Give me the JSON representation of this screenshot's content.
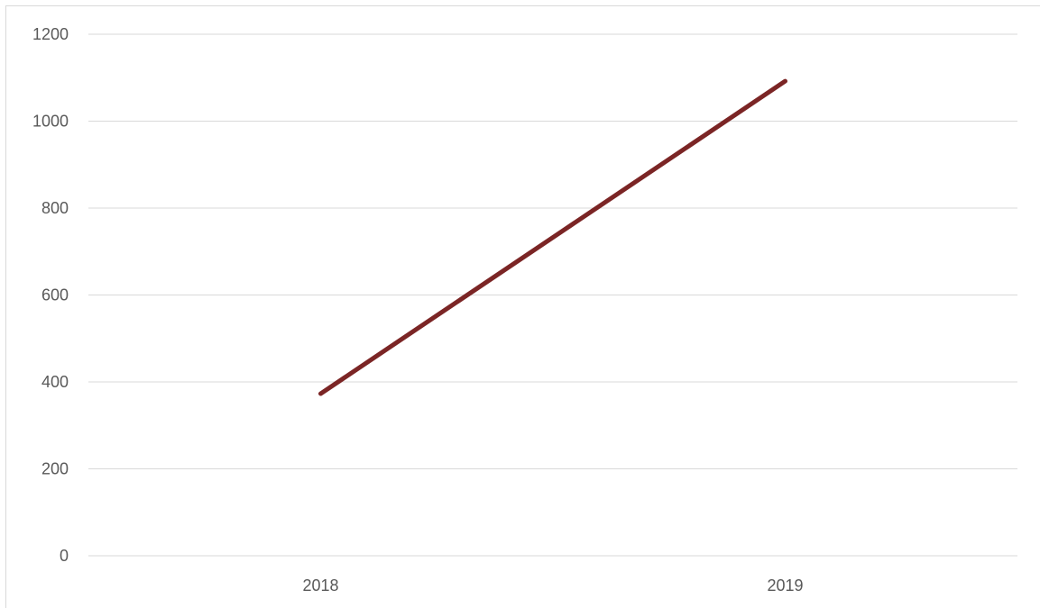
{
  "chart_data": {
    "type": "line",
    "categories": [
      "2018",
      "2019"
    ],
    "series": [
      {
        "values": [
          373,
          1092
        ],
        "color": "#7b2525"
      }
    ],
    "ylim": [
      0,
      1200
    ],
    "yticks": [
      0,
      200,
      400,
      600,
      800,
      1000,
      1200
    ],
    "ytick_labels": [
      "0",
      "200",
      "400",
      "600",
      "800",
      "1000",
      "1200"
    ],
    "grid": true,
    "legend": "none",
    "gridline_color": "#d9d9d9",
    "label_color": "#595959"
  }
}
